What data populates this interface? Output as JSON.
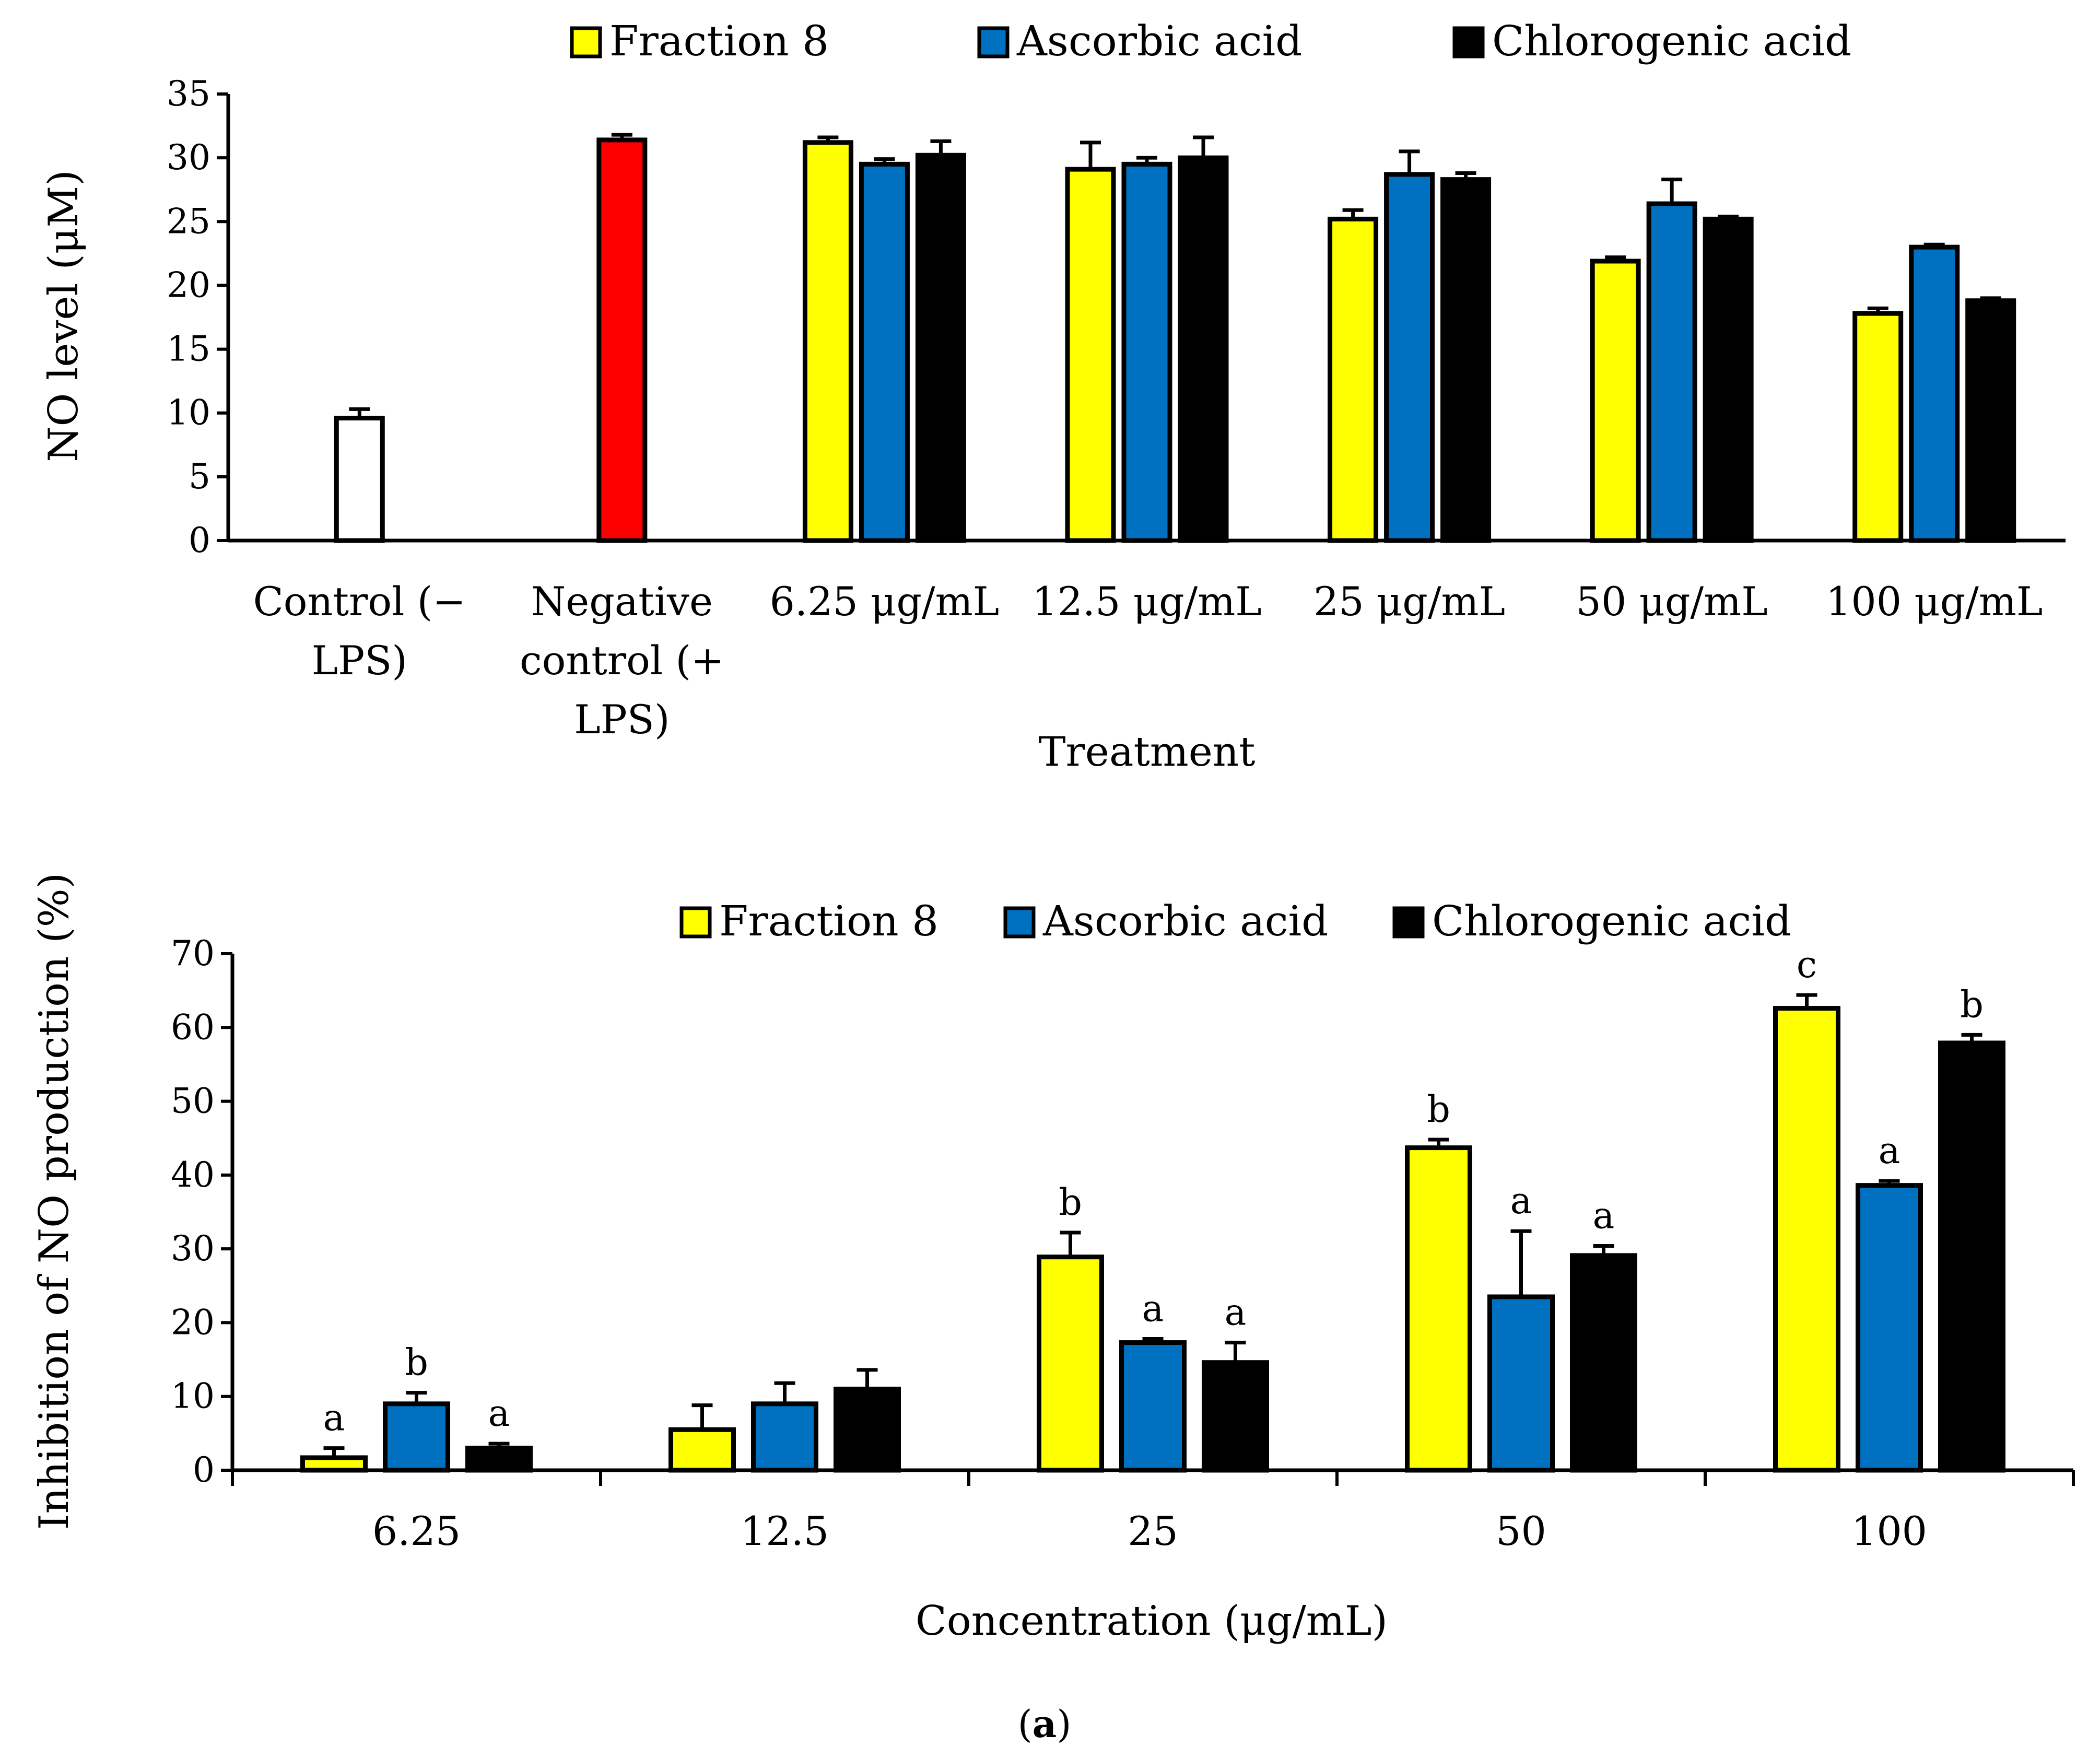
{
  "colors": {
    "fraction8": "#ffff00",
    "ascorbic": "#0070c0",
    "chlorogenic": "#000000",
    "control": "#ffffff",
    "negative": "#ff0000",
    "outline": "#000000"
  },
  "panel_label": "a",
  "chart_data": [
    {
      "type": "bar",
      "id": "top",
      "ylabel": "NO level (μM)",
      "xlabel": "Treatment",
      "ylim": [
        0,
        35
      ],
      "yticks": [
        0,
        5,
        10,
        15,
        20,
        25,
        30,
        35
      ],
      "legend": [
        "Fraction 8",
        "Ascorbic acid",
        "Chlorogenic acid"
      ],
      "legend_position": "top",
      "categories": [
        {
          "lines": [
            "Control (−",
            "LPS)"
          ],
          "bars": [
            {
              "series": "control",
              "value": 9.6,
              "error": 0.7
            }
          ]
        },
        {
          "lines": [
            "Negative",
            "control (+",
            "LPS)"
          ],
          "bars": [
            {
              "series": "negative",
              "value": 31.4,
              "error": 0.4
            }
          ]
        },
        {
          "lines": [
            "6.25 μg/mL"
          ],
          "bars": [
            {
              "series": "fraction8",
              "value": 31.2,
              "error": 0.4
            },
            {
              "series": "ascorbic",
              "value": 29.5,
              "error": 0.4
            },
            {
              "series": "chlorogenic",
              "value": 30.2,
              "error": 1.1
            }
          ]
        },
        {
          "lines": [
            "12.5 μg/mL"
          ],
          "bars": [
            {
              "series": "fraction8",
              "value": 29.1,
              "error": 2.1
            },
            {
              "series": "ascorbic",
              "value": 29.5,
              "error": 0.5
            },
            {
              "series": "chlorogenic",
              "value": 30.0,
              "error": 1.6
            }
          ]
        },
        {
          "lines": [
            "25 μg/mL"
          ],
          "bars": [
            {
              "series": "fraction8",
              "value": 25.2,
              "error": 0.7
            },
            {
              "series": "ascorbic",
              "value": 28.7,
              "error": 1.8
            },
            {
              "series": "chlorogenic",
              "value": 28.3,
              "error": 0.5
            }
          ]
        },
        {
          "lines": [
            "50 μg/mL"
          ],
          "bars": [
            {
              "series": "fraction8",
              "value": 21.9,
              "error": 0.3
            },
            {
              "series": "ascorbic",
              "value": 26.4,
              "error": 1.9
            },
            {
              "series": "chlorogenic",
              "value": 25.2,
              "error": 0.2
            }
          ]
        },
        {
          "lines": [
            "100 μg/mL"
          ],
          "bars": [
            {
              "series": "fraction8",
              "value": 17.8,
              "error": 0.4
            },
            {
              "series": "ascorbic",
              "value": 23.0,
              "error": 0.2
            },
            {
              "series": "chlorogenic",
              "value": 18.8,
              "error": 0.2
            }
          ]
        }
      ]
    },
    {
      "type": "bar",
      "id": "bottom",
      "ylabel": "Inhibition of NO production (%)",
      "xlabel": "Concentration (μg/mL)",
      "ylim": [
        0,
        70
      ],
      "yticks": [
        0,
        10,
        20,
        30,
        40,
        50,
        60,
        70
      ],
      "legend": [
        "Fraction 8",
        "Ascorbic acid",
        "Chlorogenic acid"
      ],
      "legend_position": "top",
      "categories": [
        "6.25",
        "12.5",
        "25",
        "50",
        "100"
      ],
      "series": [
        {
          "name": "Fraction 8",
          "key": "fraction8",
          "values": [
            1.7,
            5.5,
            28.9,
            43.7,
            62.6
          ],
          "errors": [
            1.3,
            3.3,
            3.3,
            1.1,
            1.8
          ],
          "letters": [
            "a",
            "",
            "b",
            "b",
            "c"
          ]
        },
        {
          "name": "Ascorbic acid",
          "key": "ascorbic",
          "values": [
            9.0,
            9.0,
            17.3,
            23.5,
            38.6
          ],
          "errors": [
            1.5,
            2.8,
            0.5,
            8.9,
            0.6
          ],
          "letters": [
            "b",
            "",
            "a",
            "a",
            "a"
          ]
        },
        {
          "name": "Chlorogenic acid",
          "key": "chlorogenic",
          "values": [
            3.0,
            11.0,
            14.6,
            29.1,
            57.9
          ],
          "errors": [
            0.6,
            2.6,
            2.7,
            1.3,
            1.1
          ],
          "letters": [
            "a",
            "",
            "a",
            "a",
            "b"
          ]
        }
      ]
    }
  ]
}
